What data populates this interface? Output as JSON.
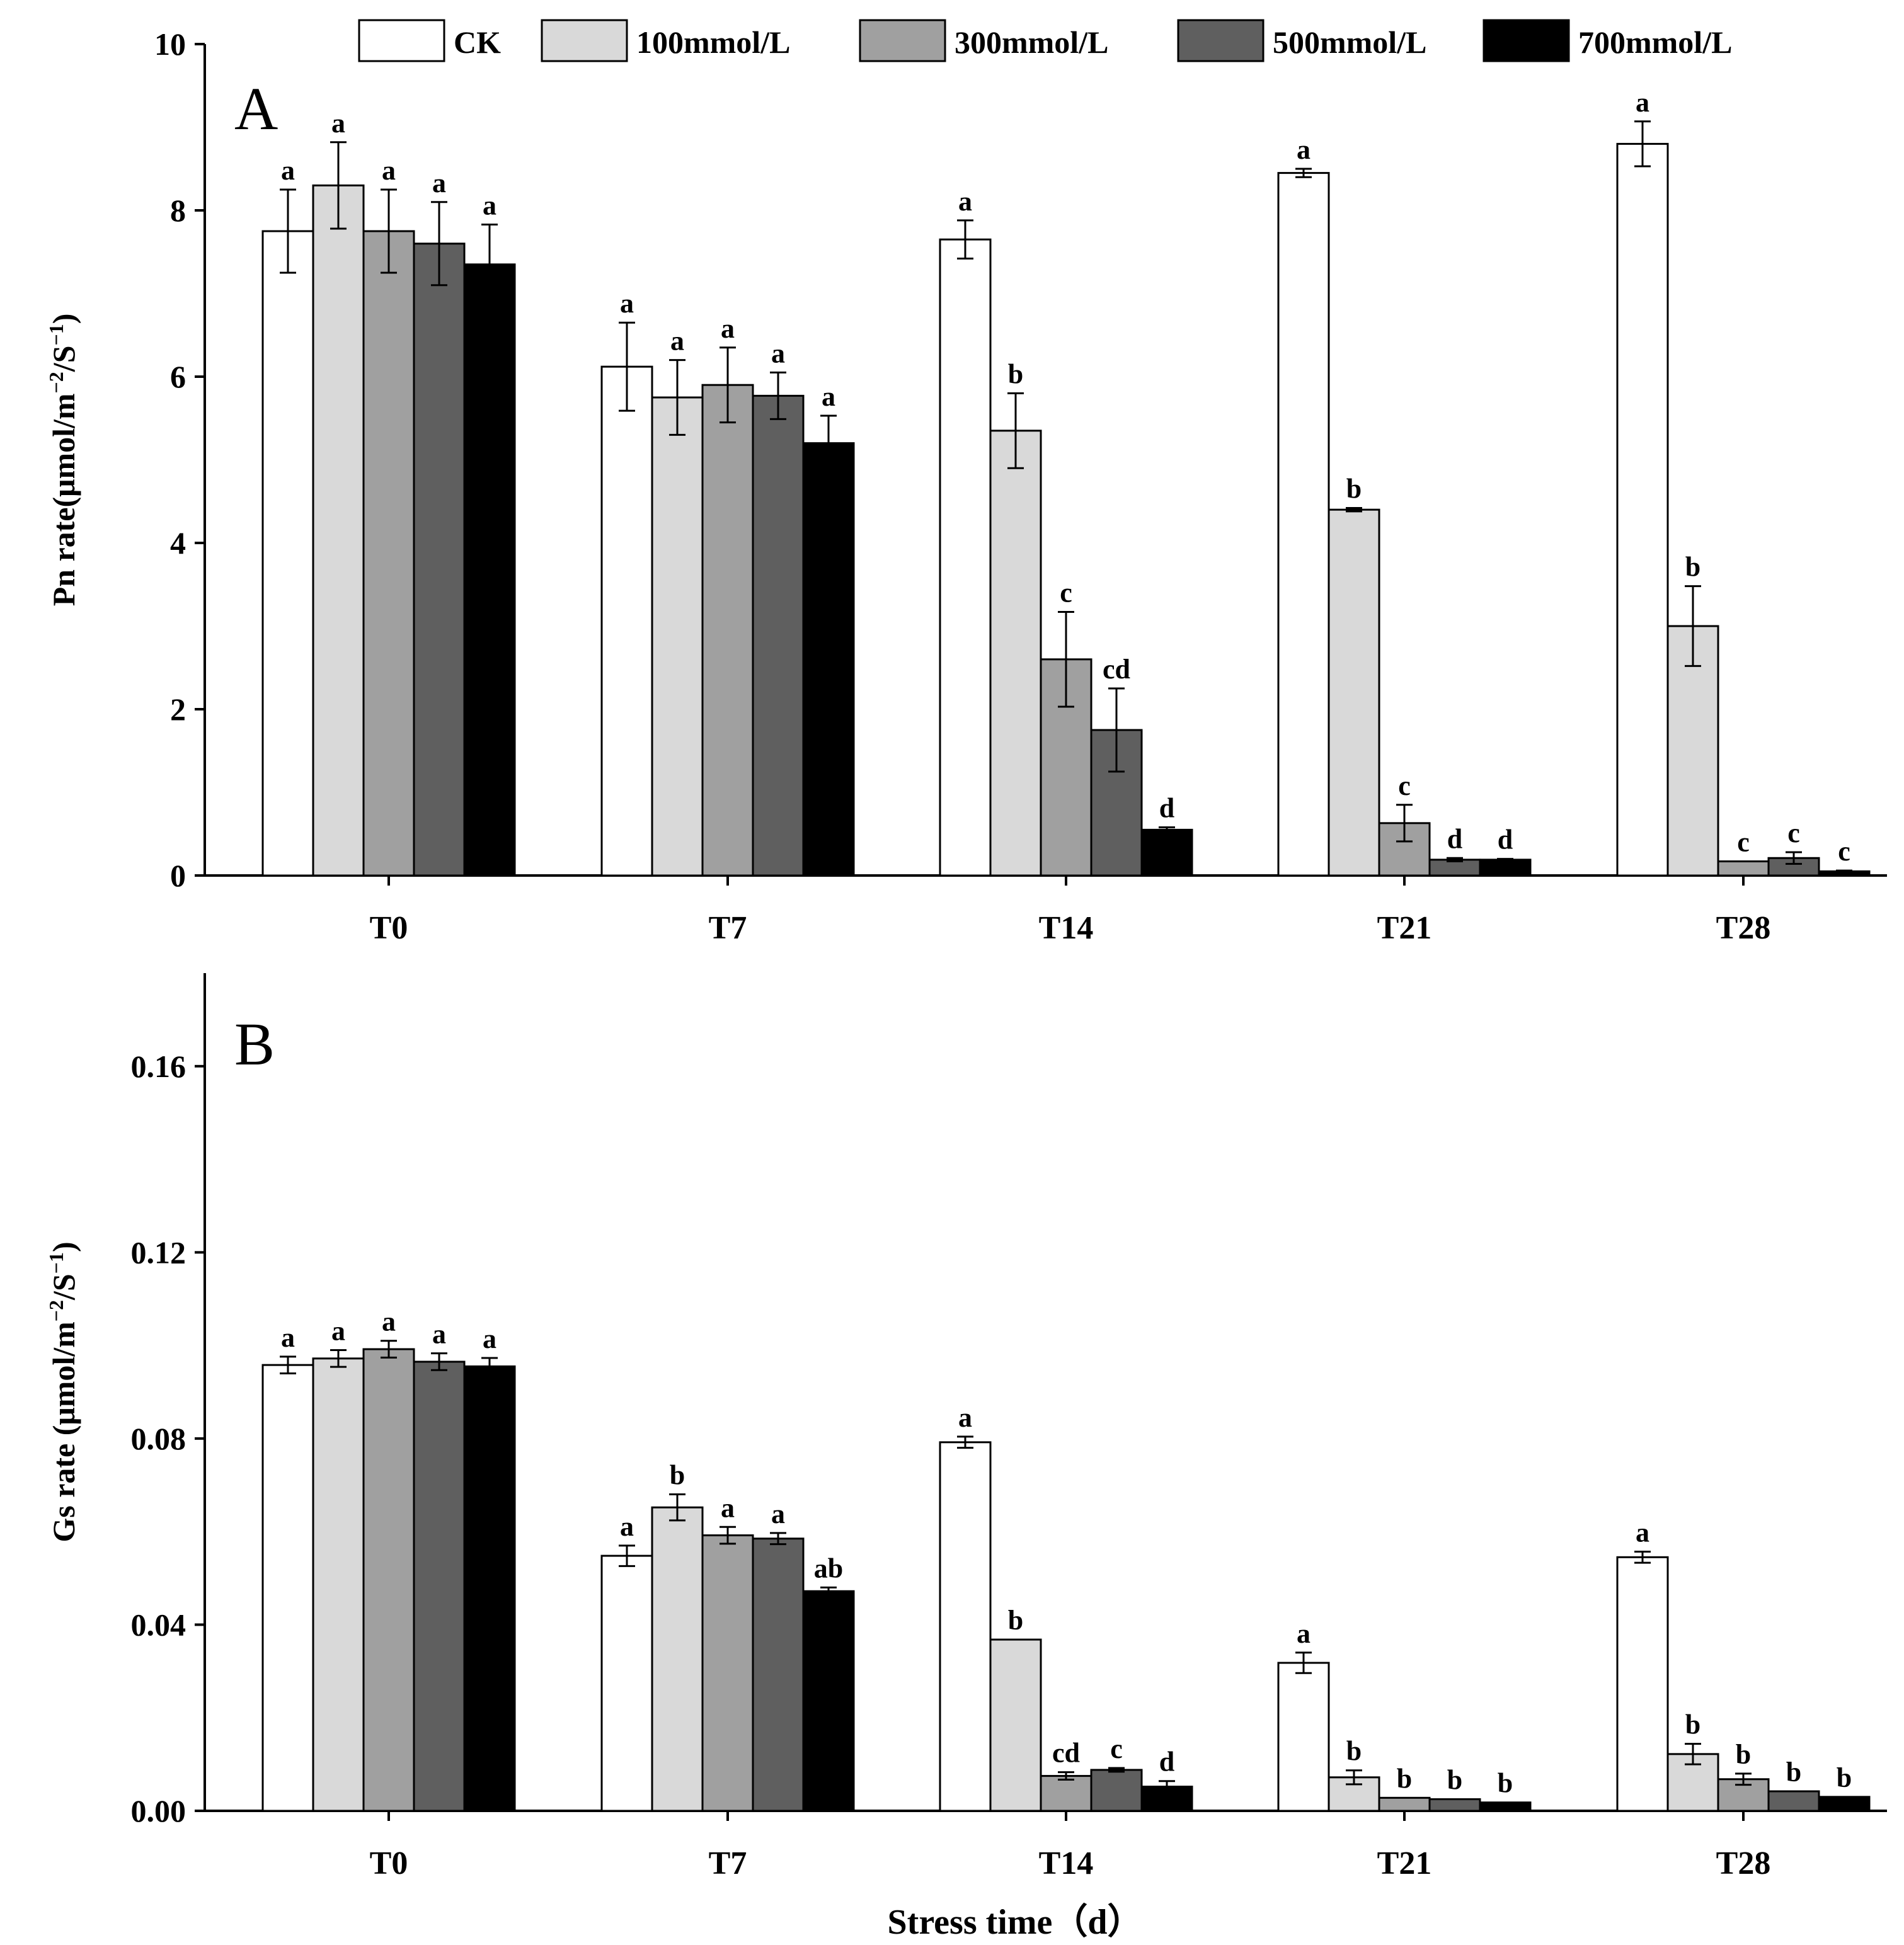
{
  "figure": {
    "xlabel": "Stress time（d）",
    "categories": [
      "T0",
      "T7",
      "T14",
      "T21",
      "T28"
    ]
  },
  "legend": {
    "entries": [
      {
        "name": "CK",
        "color": "#ffffff"
      },
      {
        "name": "100mmol/L",
        "color": "#d9d9d9"
      },
      {
        "name": "300mmol/L",
        "color": "#a0a0a0"
      },
      {
        "name": "500mmol/L",
        "color": "#5f5f5f"
      },
      {
        "name": "700mmol/L",
        "color": "#000000"
      }
    ]
  },
  "chart_data": [
    {
      "type": "bar",
      "panel": "A",
      "ylabel_main": "Pn rate(μmol/m",
      "ylabel_exp1": "−2",
      "ylabel_mid": "/S",
      "ylabel_exp2": "−1",
      "ylabel_end": ")",
      "ylim": [
        0,
        10
      ],
      "yticks": [
        0,
        2,
        4,
        6,
        8,
        10
      ],
      "ytick_labels": [
        "0",
        "2",
        "4",
        "6",
        "8",
        "10"
      ],
      "categories": [
        "T0",
        "T7",
        "T14",
        "T21",
        "T28"
      ],
      "series": [
        {
          "name": "CK",
          "values": [
            7.75,
            6.12,
            7.65,
            8.45,
            8.8
          ],
          "errors": [
            0.5,
            0.53,
            0.23,
            0.05,
            0.27
          ],
          "labels": [
            "a",
            "a",
            "a",
            "a",
            "a"
          ]
        },
        {
          "name": "100mmol/L",
          "values": [
            8.3,
            5.75,
            5.35,
            4.4,
            3.0
          ],
          "errors": [
            0.52,
            0.45,
            0.45,
            0.02,
            0.48
          ],
          "labels": [
            "a",
            "a",
            "b",
            "b",
            "b"
          ]
        },
        {
          "name": "300mmol/L",
          "values": [
            7.75,
            5.9,
            2.6,
            0.63,
            0.17
          ],
          "errors": [
            0.5,
            0.45,
            0.57,
            0.22,
            0.0
          ],
          "labels": [
            "a",
            "a",
            "c",
            "c",
            "c"
          ]
        },
        {
          "name": "500mmol/L",
          "values": [
            7.6,
            5.77,
            1.75,
            0.19,
            0.21
          ],
          "errors": [
            0.5,
            0.28,
            0.5,
            0.02,
            0.07
          ],
          "labels": [
            "a",
            "a",
            "cd",
            "d",
            "c"
          ]
        },
        {
          "name": "700mmol/L",
          "values": [
            7.35,
            5.2,
            0.55,
            0.19,
            0.05
          ],
          "errors": [
            0.48,
            0.33,
            0.03,
            0.01,
            0.01
          ],
          "labels": [
            "a",
            "a",
            "d",
            "d",
            "c"
          ]
        }
      ]
    },
    {
      "type": "bar",
      "panel": "B",
      "ylabel_main": "Gs rate (μmol/m",
      "ylabel_exp1": "−2",
      "ylabel_mid": "/S",
      "ylabel_exp2": "−1",
      "ylabel_end": ")",
      "ylim": [
        0,
        0.18
      ],
      "yticks": [
        0,
        0.04,
        0.08,
        0.12,
        0.16
      ],
      "ytick_labels": [
        "0.00",
        "0.04",
        "0.08",
        "0.12",
        "0.16"
      ],
      "categories": [
        "T0",
        "T7",
        "T14",
        "T21",
        "T28"
      ],
      "series": [
        {
          "name": "CK",
          "values": [
            0.0958,
            0.0548,
            0.0792,
            0.0318,
            0.0545
          ],
          "errors": [
            0.0018,
            0.0022,
            0.0012,
            0.0022,
            0.0012
          ],
          "labels": [
            "a",
            "a",
            "a",
            "a",
            "a"
          ]
        },
        {
          "name": "100mmol/L",
          "values": [
            0.0972,
            0.0652,
            0.0368,
            0.0072,
            0.0122
          ],
          "errors": [
            0.0018,
            0.0028,
            0.0,
            0.0015,
            0.0022
          ],
          "labels": [
            "a",
            "b",
            "b",
            "b",
            "b"
          ]
        },
        {
          "name": "300mmol/L",
          "values": [
            0.0992,
            0.0592,
            0.0075,
            0.0028,
            0.0068
          ],
          "errors": [
            0.0018,
            0.0018,
            0.0008,
            0.0,
            0.0012
          ],
          "labels": [
            "a",
            "a",
            "cd",
            "b",
            "b"
          ]
        },
        {
          "name": "500mmol/L",
          "values": [
            0.0965,
            0.0585,
            0.0088,
            0.0025,
            0.0042
          ],
          "errors": [
            0.0018,
            0.0012,
            0.0004,
            0.0,
            0.0
          ],
          "labels": [
            "a",
            "a",
            "c",
            "b",
            "b"
          ]
        },
        {
          "name": "700mmol/L",
          "values": [
            0.0955,
            0.0472,
            0.0052,
            0.0018,
            0.003
          ],
          "errors": [
            0.0018,
            0.0008,
            0.0012,
            0.0,
            0.0
          ],
          "labels": [
            "a",
            "ab",
            "d",
            "b",
            "b"
          ]
        }
      ]
    }
  ]
}
